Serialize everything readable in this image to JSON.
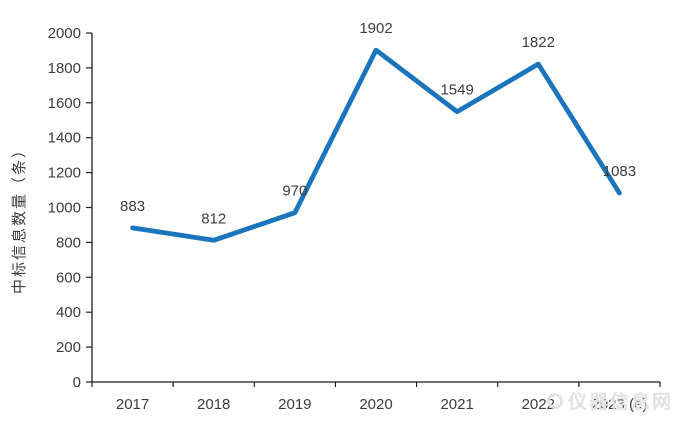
{
  "colors": {
    "line": "#1b75bc",
    "text": "#3d3d3d",
    "axis": "#1f1f1f",
    "watermark": "#e2e2e2"
  },
  "watermark": {
    "icon": "circle-logo",
    "text": "仪器信息网"
  },
  "chart_data": {
    "type": "line",
    "title": "",
    "xlabel": "",
    "ylabel": "中标信息数量（条）",
    "categories": [
      "2017",
      "2018",
      "2019",
      "2020",
      "2021",
      "2022",
      "2023 (e)"
    ],
    "values": [
      883,
      812,
      970,
      1902,
      1549,
      1822,
      1083
    ],
    "data_labels": [
      "883",
      "812",
      "970",
      "1902",
      "1549",
      "1822",
      "1083"
    ],
    "ylim": [
      0,
      2000
    ],
    "ytick_step": 200,
    "ytick_labels": [
      "0",
      "200",
      "400",
      "600",
      "800",
      "1000",
      "1200",
      "1400",
      "1600",
      "1800",
      "2000"
    ],
    "grid": false,
    "legend": "none",
    "markers": "none"
  }
}
